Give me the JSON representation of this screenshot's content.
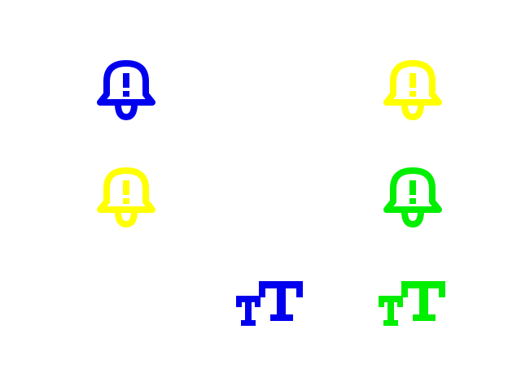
{
  "colors": {
    "blue": "#0000ee",
    "yellow": "#ffff00",
    "green": "#00ee00",
    "background": "#ffffff"
  },
  "icons": [
    {
      "name": "bell-alert-icon",
      "color": "#0000ee"
    },
    {
      "name": "bell-alert-icon",
      "color": "#ffff00"
    },
    {
      "name": "bell-alert-icon",
      "color": "#ffff00"
    },
    {
      "name": "bell-alert-icon",
      "color": "#00ee00"
    },
    {
      "name": "text-size-icon",
      "color": "#0000ee"
    },
    {
      "name": "text-size-icon",
      "color": "#00ee00"
    }
  ]
}
